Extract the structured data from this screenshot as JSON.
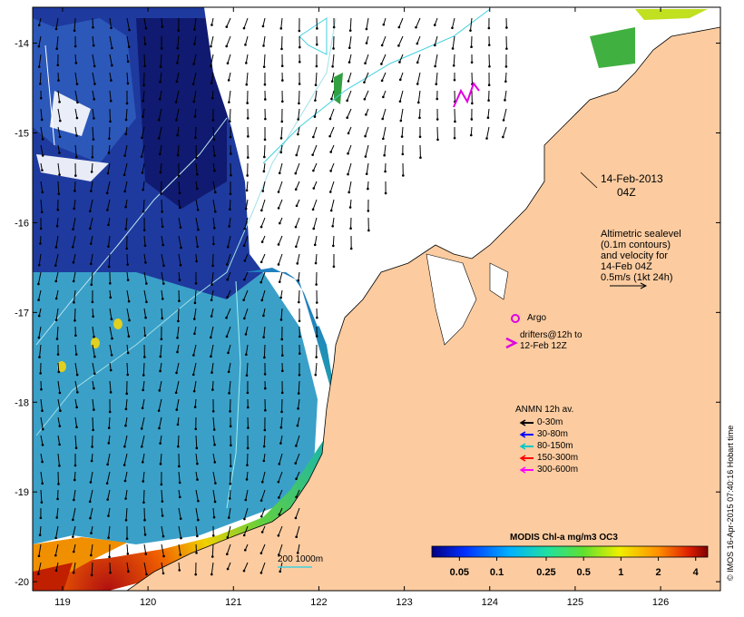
{
  "map": {
    "lon_ticks": [
      "119",
      "120",
      "121",
      "122",
      "123",
      "124",
      "125",
      "126"
    ],
    "lat_ticks": [
      "-14",
      "-15",
      "-16",
      "-17",
      "-18",
      "-19",
      "-20"
    ],
    "lon_range": [
      118.65,
      126.7
    ],
    "lat_range": [
      -20.1,
      -13.6
    ]
  },
  "date": {
    "line1": "14-Feb-2013",
    "line2": "04Z"
  },
  "altimetry": {
    "lines": [
      "Altimetric sealevel",
      "(0.1m contours)",
      "and velocity for",
      "14-Feb 04Z",
      "0.5m/s (1kt 24h)"
    ]
  },
  "argo": {
    "label": "Argo"
  },
  "drifters": {
    "lines": [
      "drifters@12h to",
      "12-Feb 12Z"
    ]
  },
  "anmn": {
    "title": "ANMN 12h av.",
    "items": [
      {
        "label": "0-30m",
        "color": "#000000"
      },
      {
        "label": "30-80m",
        "color": "#0000ff"
      },
      {
        "label": "80-150m",
        "color": "#00c8c8"
      },
      {
        "label": "150-300m",
        "color": "#ff0000"
      },
      {
        "label": "300-600m",
        "color": "#ff00ff"
      }
    ]
  },
  "depth_legend": {
    "label": "200  1000m"
  },
  "colorbar": {
    "title": "MODIS Chl-a mg/m3 OC3",
    "ticks": [
      "0.05",
      "0.1",
      "0.25",
      "0.5",
      "1",
      "2",
      "4"
    ],
    "log_range": [
      0.03,
      5
    ]
  },
  "credit": "© IMOS 16-Apr-2015 07:40:16 Hobart time",
  "colors": {
    "land": "#fccca0",
    "coast": "#000000",
    "contour": "#6fe0e0",
    "ocean_deep": "#1a2a8c"
  }
}
